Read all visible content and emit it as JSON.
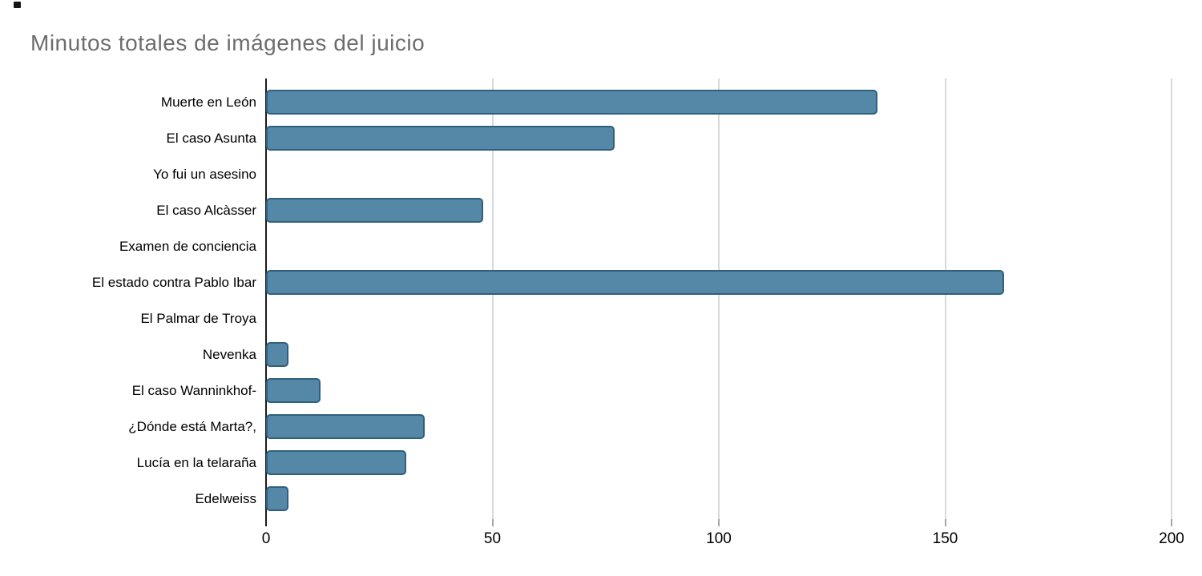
{
  "chart_data": {
    "type": "bar",
    "orientation": "horizontal",
    "title": "Minutos totales de imágenes del juicio",
    "categories": [
      "Muerte en León",
      "El caso Asunta",
      "Yo fui un asesino",
      "El caso Alcàsser",
      "Examen de conciencia",
      "El estado contra Pablo Ibar",
      "El Palmar de Troya",
      "Nevenka",
      "El caso Wanninkhof-",
      "¿Dónde está Marta?,",
      "Lucía en la telaraña",
      "Edelweiss"
    ],
    "values": [
      135,
      77,
      0,
      48,
      0,
      163,
      0,
      5,
      12,
      35,
      31,
      5
    ],
    "x_ticks": [
      0,
      50,
      100,
      150,
      200
    ],
    "xlim": [
      0,
      200
    ],
    "xlabel": "",
    "ylabel": "",
    "grid": true,
    "legend": "none",
    "colors": {
      "bar_fill": "#5588a6",
      "bar_border": "#2f607e",
      "gridline": "#d9d9d9",
      "axis_line": "#1a1a1a",
      "title_text": "#6d6d6d",
      "label_text": "#000000",
      "background": "#ffffff"
    }
  }
}
